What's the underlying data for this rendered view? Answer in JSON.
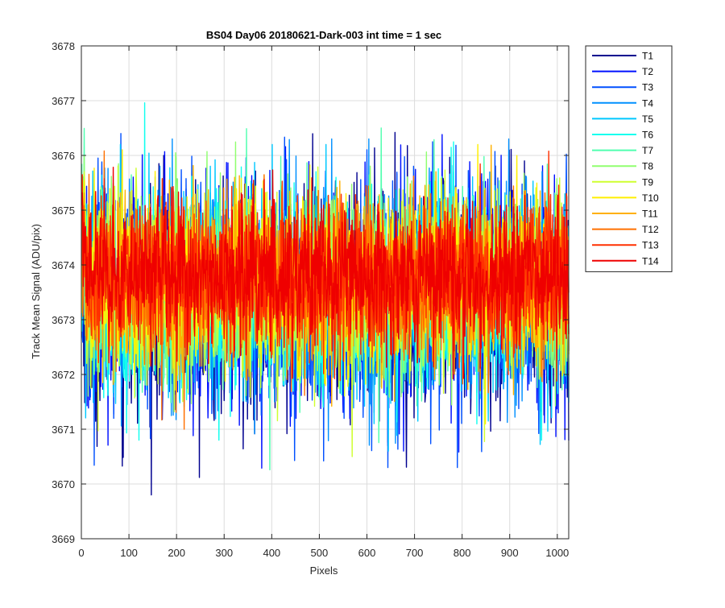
{
  "chart_data": {
    "type": "line",
    "title": "BS04 Day06 20180621-Dark-003 int time = 1 sec",
    "xlabel": "Pixels",
    "ylabel": "Track Mean Signal (ADU/pix)",
    "xlim": [
      0,
      1024
    ],
    "ylim": [
      3669,
      3678
    ],
    "xticks": [
      0,
      100,
      200,
      300,
      400,
      500,
      600,
      700,
      800,
      900,
      1000
    ],
    "yticks": [
      3669,
      3670,
      3671,
      3672,
      3673,
      3674,
      3675,
      3676,
      3677,
      3678
    ],
    "grid": true,
    "legend_position": "outside-top-right",
    "n_points_per_series": 1024,
    "series": [
      {
        "name": "T1",
        "color": "#00008F",
        "center": 3673.3,
        "min": 3669.8,
        "max": 3677.1
      },
      {
        "name": "T2",
        "color": "#0010FF",
        "center": 3673.4,
        "min": 3670.0,
        "max": 3676.5
      },
      {
        "name": "T3",
        "color": "#0050FF",
        "center": 3673.4,
        "min": 3670.3,
        "max": 3676.4
      },
      {
        "name": "T4",
        "color": "#0090FF",
        "center": 3673.5,
        "min": 3670.3,
        "max": 3676.3
      },
      {
        "name": "T5",
        "color": "#00C8FF",
        "center": 3673.5,
        "min": 3670.6,
        "max": 3676.2
      },
      {
        "name": "T6",
        "color": "#10FFEF",
        "center": 3673.5,
        "min": 3670.8,
        "max": 3677.3
      },
      {
        "name": "T7",
        "color": "#50FFAF",
        "center": 3673.6,
        "min": 3669.9,
        "max": 3676.5
      },
      {
        "name": "T8",
        "color": "#90FF6F",
        "center": 3673.6,
        "min": 3669.8,
        "max": 3676.9
      },
      {
        "name": "T9",
        "color": "#CFFF30",
        "center": 3673.6,
        "min": 3670.5,
        "max": 3677.0
      },
      {
        "name": "T10",
        "color": "#FFEF00",
        "center": 3673.7,
        "min": 3671.0,
        "max": 3676.2
      },
      {
        "name": "T11",
        "color": "#FFB000",
        "center": 3673.7,
        "min": 3669.5,
        "max": 3676.6
      },
      {
        "name": "T12",
        "color": "#FF7000",
        "center": 3673.7,
        "min": 3671.0,
        "max": 3677.0
      },
      {
        "name": "T13",
        "color": "#FF3000",
        "center": 3673.8,
        "min": 3671.4,
        "max": 3676.5
      },
      {
        "name": "T14",
        "color": "#EF0000",
        "center": 3673.8,
        "min": 3671.6,
        "max": 3676.4
      }
    ]
  }
}
